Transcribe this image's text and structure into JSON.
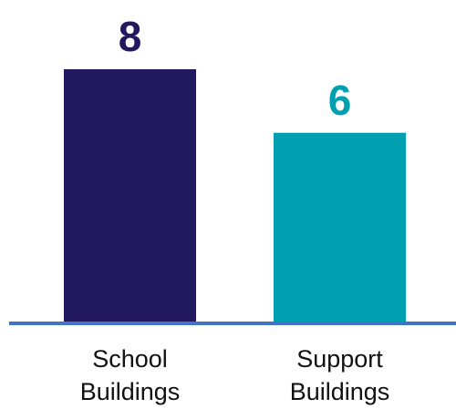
{
  "chart_data": {
    "type": "bar",
    "categories": [
      "School Buildings",
      "Support Buildings"
    ],
    "values": [
      8,
      6
    ],
    "colors": [
      "#22195e",
      "#00a0b0"
    ],
    "ylim": [
      0,
      8
    ]
  }
}
